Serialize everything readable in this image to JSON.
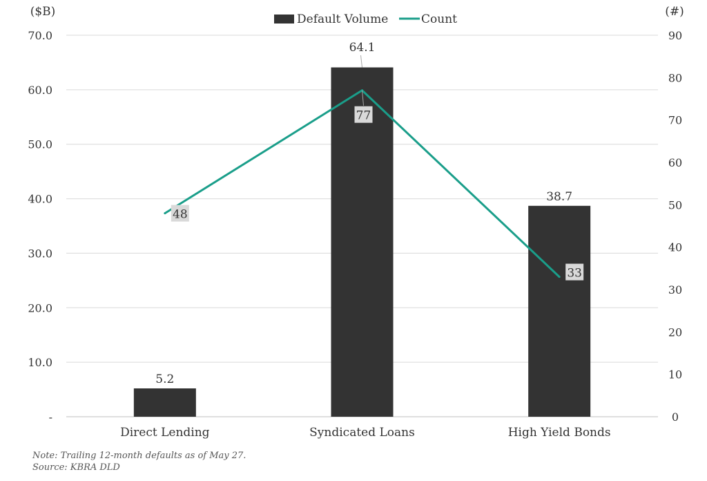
{
  "chart_data": {
    "type": "bar",
    "categories": [
      "Direct Lending",
      "Syndicated Loans",
      "High Yield Bonds"
    ],
    "series": [
      {
        "name": "Default Volume",
        "axis": "left",
        "kind": "bar",
        "color": "#333333",
        "values": [
          5.2,
          64.1,
          38.7
        ],
        "labels": [
          "5.2",
          "64.1",
          "38.7"
        ]
      },
      {
        "name": "Count",
        "axis": "right",
        "kind": "line",
        "color": "#1a9e8a",
        "values": [
          48,
          77,
          33
        ],
        "labels": [
          "48",
          "77",
          "33"
        ]
      }
    ],
    "y_left": {
      "label": "($B)",
      "ylim": [
        0,
        70
      ],
      "ticks": [
        0,
        10,
        20,
        30,
        40,
        50,
        60,
        70
      ],
      "tick_labels": [
        "-",
        "10.0",
        "20.0",
        "30.0",
        "40.0",
        "50.0",
        "60.0",
        "70.0"
      ]
    },
    "y_right": {
      "label": "(#)",
      "ylim": [
        0,
        90
      ],
      "ticks": [
        0,
        10,
        20,
        30,
        40,
        50,
        60,
        70,
        80,
        90
      ],
      "tick_labels": [
        "0",
        "10",
        "20",
        "30",
        "40",
        "50",
        "60",
        "70",
        "80",
        "90"
      ]
    },
    "grid": true,
    "legend_position": "top-center"
  },
  "notes": {
    "line1": "Note: Trailing 12-month defaults as of May 27.",
    "line2": "Source: KBRA DLD"
  }
}
